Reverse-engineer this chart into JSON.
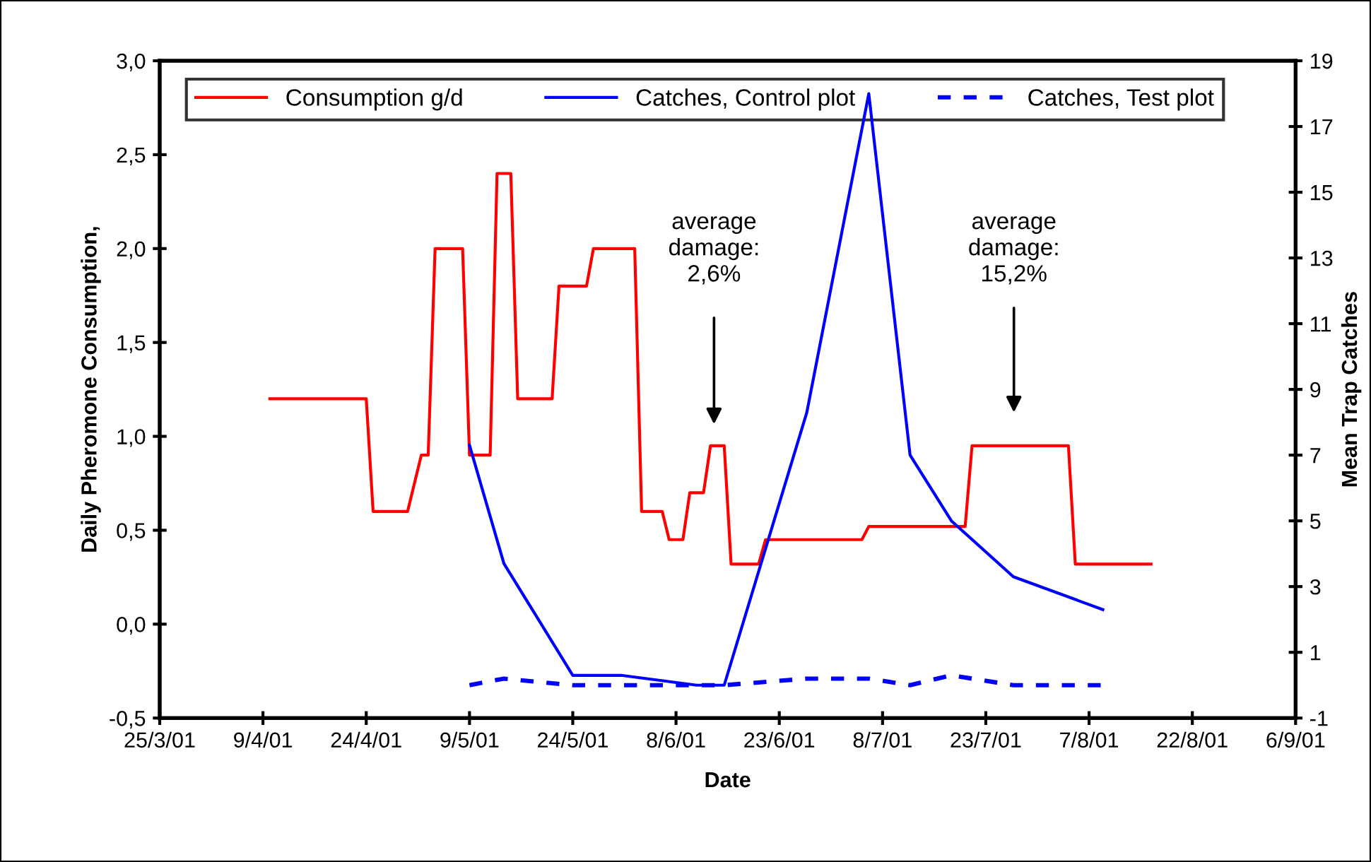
{
  "chart_data": {
    "type": "line",
    "xlabel": "Date",
    "ylabel": "Daily Pheromone Consumption,",
    "y2label": "Mean Trap Catches",
    "xlim": [
      "2001-03-25",
      "2001-09-06"
    ],
    "xticks": [
      {
        "value": "2001-03-25",
        "label": "25/3/01"
      },
      {
        "value": "2001-04-09",
        "label": "9/4/01"
      },
      {
        "value": "2001-04-24",
        "label": "24/4/01"
      },
      {
        "value": "2001-05-09",
        "label": "9/5/01"
      },
      {
        "value": "2001-05-24",
        "label": "24/5/01"
      },
      {
        "value": "2001-06-08",
        "label": "8/6/01"
      },
      {
        "value": "2001-06-23",
        "label": "23/6/01"
      },
      {
        "value": "2001-07-08",
        "label": "8/7/01"
      },
      {
        "value": "2001-07-23",
        "label": "23/7/01"
      },
      {
        "value": "2001-08-07",
        "label": "7/8/01"
      },
      {
        "value": "2001-08-22",
        "label": "22/8/01"
      },
      {
        "value": "2001-09-06",
        "label": "6/9/01"
      }
    ],
    "ylim": [
      -0.5,
      3.0
    ],
    "yticks": [
      {
        "value": -0.5,
        "label": "-0,5"
      },
      {
        "value": 0,
        "label": "0,0"
      },
      {
        "value": 0.5,
        "label": "0,5"
      },
      {
        "value": 1,
        "label": "1,0"
      },
      {
        "value": 1.5,
        "label": "1,5"
      },
      {
        "value": 2,
        "label": "2,0"
      },
      {
        "value": 2.5,
        "label": "2,5"
      },
      {
        "value": 3,
        "label": "3,0"
      }
    ],
    "y2lim": [
      -1,
      19
    ],
    "y2ticks": [
      -1,
      1,
      3,
      5,
      7,
      9,
      11,
      13,
      15,
      17,
      19
    ],
    "grid": false,
    "legend": "top",
    "marker": "none",
    "series": [
      {
        "name": "Consumption g/d",
        "color": "#ff0000",
        "line_style": "solid",
        "x": [
          "2001-04-10",
          "2001-04-24",
          "2001-04-25",
          "2001-04-30",
          "2001-05-02",
          "2001-05-03",
          "2001-05-04",
          "2001-05-08",
          "2001-05-09",
          "2001-05-12",
          "2001-05-13",
          "2001-05-15",
          "2001-05-16",
          "2001-05-21",
          "2001-05-22",
          "2001-05-26",
          "2001-05-27",
          "2001-06-02",
          "2001-06-03",
          "2001-06-06",
          "2001-06-07",
          "2001-06-09",
          "2001-06-10",
          "2001-06-12",
          "2001-06-13",
          "2001-06-15",
          "2001-06-16",
          "2001-06-20",
          "2001-06-21",
          "2001-07-05",
          "2001-07-06",
          "2001-07-20",
          "2001-07-21",
          "2001-08-04",
          "2001-08-05",
          "2001-08-16"
        ],
        "values": [
          1.2,
          1.2,
          0.6,
          0.6,
          0.9,
          0.9,
          2.0,
          2.0,
          0.9,
          0.9,
          2.4,
          2.4,
          1.2,
          1.2,
          1.8,
          1.8,
          2.0,
          2.0,
          0.6,
          0.6,
          0.45,
          0.45,
          0.7,
          0.7,
          0.95,
          0.95,
          0.32,
          0.32,
          0.45,
          0.45,
          0.52,
          0.52,
          0.95,
          0.95,
          0.32,
          0.32
        ]
      },
      {
        "name": "Catches, Control plot",
        "color": "#0000ff",
        "axis": "y2",
        "line_style": "solid",
        "x": [
          "2001-05-09",
          "2001-05-14",
          "2001-05-24",
          "2001-05-31",
          "2001-06-11",
          "2001-06-15",
          "2001-06-27",
          "2001-07-06",
          "2001-07-12",
          "2001-07-18",
          "2001-07-27",
          "2001-08-09"
        ],
        "values": [
          7.3,
          3.7,
          0.3,
          0.3,
          0,
          0,
          8.3,
          18,
          7.0,
          5.0,
          3.3,
          2.3
        ]
      },
      {
        "name": "Catches, Test plot",
        "color": "#0000ff",
        "axis": "y2",
        "line_style": "dashed",
        "x": [
          "2001-05-09",
          "2001-05-14",
          "2001-05-24",
          "2001-05-31",
          "2001-06-11",
          "2001-06-15",
          "2001-06-27",
          "2001-07-06",
          "2001-07-12",
          "2001-07-18",
          "2001-07-27",
          "2001-08-09"
        ],
        "values": [
          0,
          0.2,
          0,
          0,
          0,
          0,
          0.2,
          0.2,
          0,
          0.3,
          0,
          0
        ]
      }
    ],
    "annotations": [
      "average\ndamage:\n2,6%",
      "average\ndamage:\n15,2%"
    ]
  }
}
